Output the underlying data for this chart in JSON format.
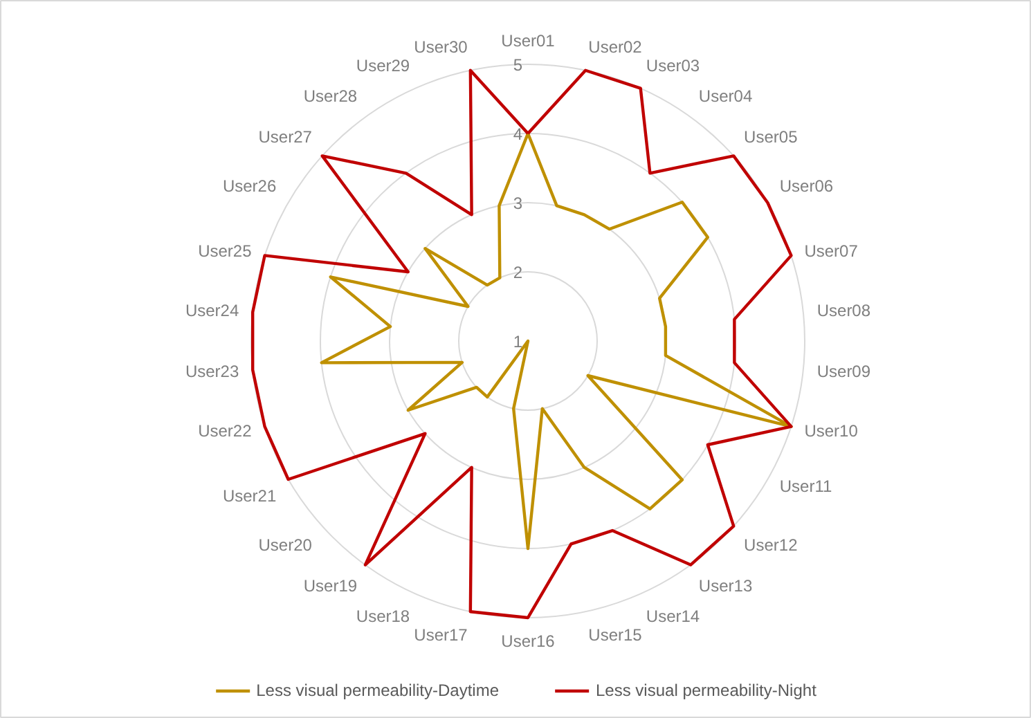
{
  "chart_data": {
    "type": "radar",
    "categories": [
      "User01",
      "User02",
      "User03",
      "User04",
      "User05",
      "User06",
      "User07",
      "User08",
      "User09",
      "User10",
      "User11",
      "User12",
      "User13",
      "User14",
      "User15",
      "User16",
      "User17",
      "User18",
      "User19",
      "User20",
      "User21",
      "User22",
      "User23",
      "User24",
      "User25",
      "User26",
      "User27",
      "User28",
      "User29",
      "User30"
    ],
    "series": [
      {
        "name": "Less visual permeability-Daytime",
        "color": "#bf9000",
        "values": [
          4,
          3,
          3,
          3,
          4,
          4,
          3,
          3,
          3,
          5,
          2,
          4,
          4,
          3,
          2,
          4,
          2,
          1,
          2,
          2,
          3,
          2,
          4,
          3,
          4,
          2,
          3,
          2,
          2,
          3
        ]
      },
      {
        "name": "Less visual permeability-Night",
        "color": "#c00000",
        "values": [
          4,
          5,
          5,
          4,
          5,
          5,
          5,
          4,
          4,
          5,
          4,
          5,
          5,
          4,
          4,
          5,
          5,
          3,
          5,
          3,
          5,
          5,
          5,
          5,
          5,
          3,
          5,
          4,
          3,
          5
        ]
      }
    ],
    "ylim": [
      1,
      5
    ],
    "yticks": [
      1,
      2,
      3,
      4,
      5
    ],
    "grid": true,
    "legend": "bottom",
    "line_style": "solid"
  }
}
